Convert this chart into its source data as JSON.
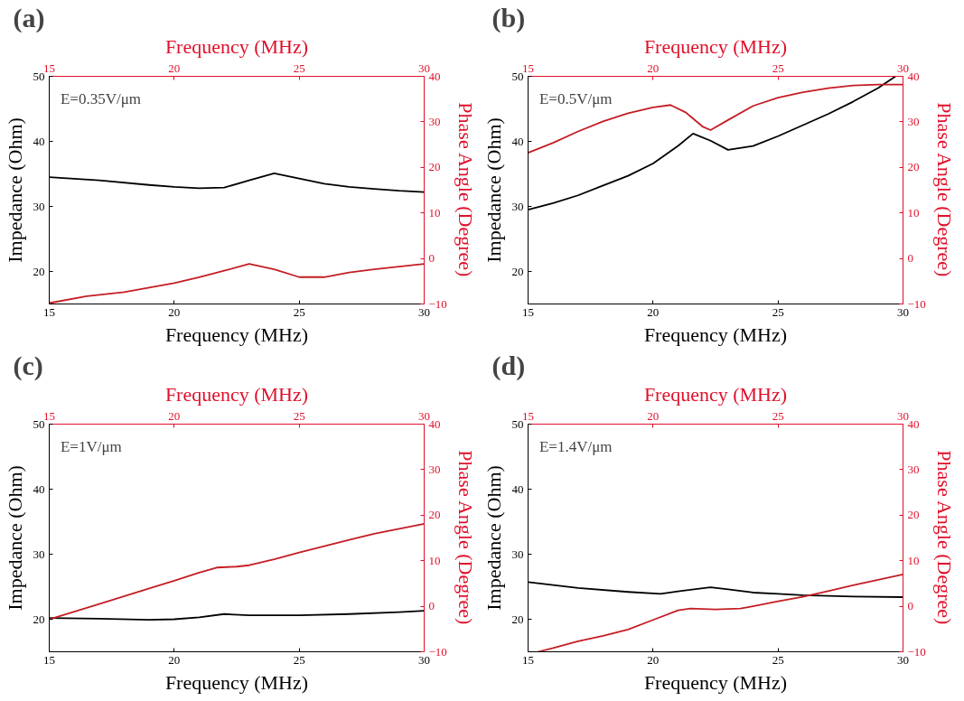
{
  "chart_data": [
    {
      "type": "line",
      "title": "(a)",
      "xlabel": "Frequency (MHz)",
      "x2label": "Frequency (MHz)",
      "ylabel": "Impedance (Ohm)",
      "y2label": "Phase Angle (Degree)",
      "annotations": [
        "E=0.35V/μm"
      ],
      "xlim": [
        15,
        30
      ],
      "xticks": [
        15,
        20,
        25,
        30
      ],
      "x2lim": [
        15,
        30
      ],
      "x2ticks": [
        15,
        20,
        25,
        30
      ],
      "ylim": [
        15,
        50
      ],
      "yticks": [
        20,
        30,
        40,
        50
      ],
      "y2lim": [
        -10,
        40
      ],
      "y2ticks": [
        -10,
        0,
        10,
        20,
        30,
        40
      ],
      "series": [
        {
          "color": "#000000",
          "x": [
            15,
            17,
            19,
            20,
            21,
            22,
            23,
            24,
            25,
            26,
            27,
            28,
            29,
            30
          ],
          "values": [
            34.5,
            34,
            33.3,
            33,
            32.8,
            32.9,
            34,
            35.1,
            34.3,
            33.5,
            33,
            32.7,
            32.4,
            32.2
          ]
        },
        {
          "color": "#c41e24",
          "axis": "y2",
          "x": [
            15,
            16.5,
            18,
            20,
            21,
            22,
            23,
            24,
            25,
            26,
            27,
            28,
            29,
            30
          ],
          "values": [
            -9.8,
            -8.3,
            -7.4,
            -5.4,
            -4.1,
            -2.7,
            -1.2,
            -2.4,
            -4.1,
            -4.1,
            -3.1,
            -2.4,
            -1.8,
            -1.2
          ]
        }
      ]
    },
    {
      "type": "line",
      "title": "(b)",
      "xlabel": "Frequency (MHz)",
      "x2label": "Frequency (MHz)",
      "ylabel": "Impedance (Ohm)",
      "y2label": "Phase Angle (Degree)",
      "annotations": [
        "E=0.5V/μm"
      ],
      "xlim": [
        15,
        30
      ],
      "xticks": [
        15,
        20,
        25,
        30
      ],
      "x2lim": [
        15,
        30
      ],
      "x2ticks": [
        15,
        20,
        25,
        30
      ],
      "ylim": [
        15,
        50
      ],
      "yticks": [
        20,
        30,
        40,
        50
      ],
      "y2lim": [
        -10,
        40
      ],
      "y2ticks": [
        -10,
        0,
        10,
        20,
        30,
        40
      ],
      "series": [
        {
          "color": "#000000",
          "x": [
            15,
            16,
            17,
            18,
            19,
            20,
            21,
            21.6,
            22.3,
            23,
            24,
            25,
            26,
            27,
            28,
            29,
            29.7
          ],
          "values": [
            29.5,
            30.5,
            31.7,
            33.2,
            34.7,
            36.6,
            39.3,
            41.2,
            40.1,
            38.7,
            39.3,
            40.8,
            42.5,
            44.2,
            46.1,
            48.2,
            50
          ]
        },
        {
          "color": "#c41e24",
          "axis": "y2",
          "x": [
            15,
            16,
            17,
            18,
            19,
            20,
            20.7,
            21.3,
            22,
            22.3,
            23,
            24,
            25,
            26,
            27,
            28,
            29,
            30
          ],
          "values": [
            23.2,
            25.4,
            27.9,
            30.1,
            31.9,
            33.2,
            33.7,
            32.1,
            28.9,
            28.2,
            30.4,
            33.5,
            35.3,
            36.5,
            37.4,
            38,
            38.2,
            38.2
          ]
        }
      ]
    },
    {
      "type": "line",
      "title": "(c)",
      "xlabel": "Frequency (MHz)",
      "x2label": "Frequency (MHz)",
      "ylabel": "Impedance (Ohm)",
      "y2label": "Phase Angle (Degree)",
      "annotations": [
        "E=1V/μm"
      ],
      "xlim": [
        15,
        30
      ],
      "xticks": [
        15,
        20,
        25,
        30
      ],
      "x2lim": [
        15,
        30
      ],
      "x2ticks": [
        15,
        20,
        25,
        30
      ],
      "ylim": [
        15,
        50
      ],
      "yticks": [
        20,
        30,
        40,
        50
      ],
      "y2lim": [
        -10,
        40
      ],
      "y2ticks": [
        -10,
        0,
        10,
        20,
        30,
        40
      ],
      "series": [
        {
          "color": "#000000",
          "x": [
            15,
            17,
            19,
            20,
            21,
            22,
            23,
            25,
            27,
            29,
            30
          ],
          "values": [
            20.2,
            20.1,
            19.9,
            20,
            20.3,
            20.8,
            20.6,
            20.6,
            20.8,
            21.1,
            21.3
          ]
        },
        {
          "color": "#c41e24",
          "axis": "y2",
          "x": [
            15,
            17,
            19,
            20,
            21,
            21.7,
            22.5,
            23,
            24,
            25,
            26,
            27,
            28,
            29,
            30
          ],
          "values": [
            -2.9,
            0.5,
            3.9,
            5.6,
            7.4,
            8.5,
            8.7,
            9,
            10.3,
            11.8,
            13.2,
            14.6,
            15.9,
            17,
            18.1
          ]
        }
      ]
    },
    {
      "type": "line",
      "title": "(d)",
      "xlabel": "Frequency (MHz)",
      "x2label": "Frequency (MHz)",
      "ylabel": "Impedance (Ohm)",
      "y2label": "Phase Angle (Degree)",
      "annotations": [
        "E=1.4V/μm"
      ],
      "xlim": [
        15,
        30
      ],
      "xticks": [
        15,
        20,
        25,
        30
      ],
      "x2lim": [
        15,
        30
      ],
      "x2ticks": [
        15,
        20,
        25,
        30
      ],
      "ylim": [
        15,
        50
      ],
      "yticks": [
        20,
        30,
        40,
        50
      ],
      "y2lim": [
        -10,
        40
      ],
      "y2ticks": [
        -10,
        0,
        10,
        20,
        30,
        40
      ],
      "series": [
        {
          "color": "#000000",
          "x": [
            15,
            17,
            19,
            20.3,
            21,
            22.3,
            23,
            24,
            25,
            26,
            28,
            30
          ],
          "values": [
            25.7,
            24.8,
            24.2,
            23.9,
            24.3,
            24.9,
            24.6,
            24.1,
            23.9,
            23.7,
            23.5,
            23.4
          ]
        },
        {
          "color": "#c41e24",
          "axis": "y2",
          "x": [
            15.4,
            16,
            17,
            18,
            19,
            20,
            21,
            21.5,
            22.5,
            23.5,
            24,
            25,
            26,
            27,
            28,
            29,
            30
          ],
          "values": [
            -10,
            -9.2,
            -7.7,
            -6.5,
            -5.1,
            -3,
            -0.9,
            -0.5,
            -0.7,
            -0.5,
            0,
            1.1,
            2.1,
            3.3,
            4.6,
            5.8,
            7
          ]
        }
      ]
    }
  ]
}
